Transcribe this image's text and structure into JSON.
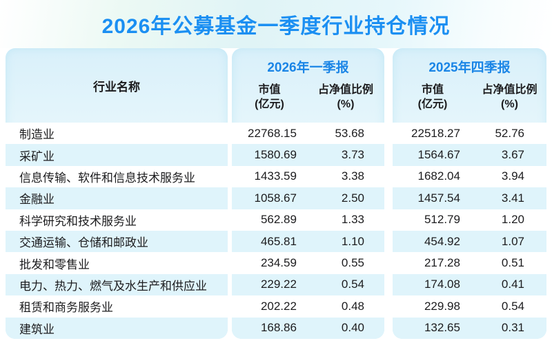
{
  "title": "2026年公募基金一季度行业持仓情况",
  "colors": {
    "accent_blue": "#1b8ff2",
    "accent_blue2": "#1a85e6",
    "stripe_cyan": "#dff4fb",
    "panel_top": "#d9f0fa",
    "text_dark": "#1c1c1e"
  },
  "chart_data": {
    "type": "table",
    "title": "2026年公募基金一季度行业持仓情况",
    "industry_header": "行业名称",
    "periods": [
      {
        "label": "2026年一季报",
        "columns": [
          {
            "line1": "市值",
            "line2": "(亿元)"
          },
          {
            "line1": "占净值比例",
            "line2": "(%)"
          }
        ]
      },
      {
        "label": "2025年四季报",
        "columns": [
          {
            "line1": "市值",
            "line2": "(亿元)"
          },
          {
            "line1": "占净值比例",
            "line2": "(%)"
          }
        ]
      }
    ],
    "rows": [
      {
        "industry": "制造业",
        "values": [
          "22768.15",
          "53.68",
          "22518.27",
          "52.76"
        ]
      },
      {
        "industry": "采矿业",
        "values": [
          "1580.69",
          "3.73",
          "1564.67",
          "3.67"
        ]
      },
      {
        "industry": "信息传输、软件和信息技术服务业",
        "values": [
          "1433.59",
          "3.38",
          "1682.04",
          "3.94"
        ]
      },
      {
        "industry": "金融业",
        "values": [
          "1058.67",
          "2.50",
          "1457.54",
          "3.41"
        ]
      },
      {
        "industry": "科学研究和技术服务业",
        "values": [
          "562.89",
          "1.33",
          "512.79",
          "1.20"
        ]
      },
      {
        "industry": "交通运输、仓储和邮政业",
        "values": [
          "465.81",
          "1.10",
          "454.92",
          "1.07"
        ]
      },
      {
        "industry": "批发和零售业",
        "values": [
          "234.59",
          "0.55",
          "217.28",
          "0.51"
        ]
      },
      {
        "industry": "电力、热力、燃气及水生产和供应业",
        "values": [
          "229.22",
          "0.54",
          "174.08",
          "0.41"
        ]
      },
      {
        "industry": "租赁和商务服务业",
        "values": [
          "202.22",
          "0.48",
          "229.98",
          "0.54"
        ]
      },
      {
        "industry": "建筑业",
        "values": [
          "168.86",
          "0.40",
          "132.65",
          "0.31"
        ]
      }
    ]
  }
}
